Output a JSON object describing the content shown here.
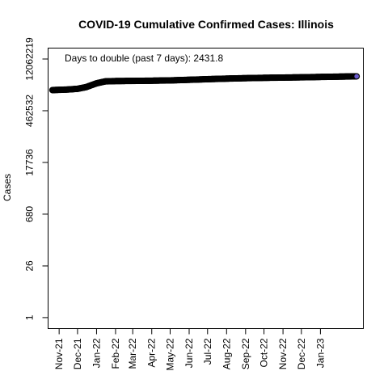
{
  "chart_data": {
    "type": "line",
    "title": "COVID-19 Cumulative Confirmed Cases: Illinois",
    "xlabel": "",
    "ylabel": "Cases",
    "y_scale": "log",
    "annotation": "Days to double (past 7 days): 2431.8",
    "grid": false,
    "legend": "none",
    "point_fill": "#6a5acd",
    "point_stroke": "#000000",
    "x_ticks": [
      "2021-11-01",
      "2021-12-01",
      "2022-01-01",
      "2022-02-01",
      "2022-03-01",
      "2022-04-01",
      "2022-05-01",
      "2022-06-01",
      "2022-07-01",
      "2022-08-01",
      "2022-09-01",
      "2022-10-01",
      "2022-11-01",
      "2022-12-01",
      "2023-01-01"
    ],
    "x_tick_labels": [
      "Nov-21",
      "Dec-21",
      "Jan-22",
      "Feb-22",
      "Mar-22",
      "Apr-22",
      "May-22",
      "Jun-22",
      "Jul-22",
      "Aug-22",
      "Sep-22",
      "Oct-22",
      "Nov-22",
      "Dec-22",
      "Jan-23"
    ],
    "y_ticks": [
      1,
      26,
      680,
      17736,
      462532,
      12062219
    ],
    "y_tick_labels": [
      "1",
      "26",
      "680",
      "17736",
      "462532",
      "12062219"
    ],
    "xlim": [
      "2021-10-14",
      "2023-03-12"
    ],
    "ylim": [
      0.5,
      24000000
    ],
    "series": [
      {
        "x": [
          "2021-10-21",
          "2021-11-01",
          "2021-11-15",
          "2021-12-01",
          "2021-12-15",
          "2022-01-01",
          "2022-01-15",
          "2022-02-01",
          "2022-03-01",
          "2022-04-01",
          "2022-05-01",
          "2022-06-01",
          "2022-07-01",
          "2022-08-01",
          "2022-09-01",
          "2022-10-01",
          "2022-11-01",
          "2022-12-01",
          "2023-01-01",
          "2023-02-01",
          "2023-03-01"
        ],
        "y": [
          1700000,
          1725000,
          1760000,
          1840000,
          2050000,
          2600000,
          2940000,
          3000000,
          3030000,
          3070000,
          3130000,
          3250000,
          3380000,
          3500000,
          3600000,
          3680000,
          3740000,
          3800000,
          3890000,
          3970000,
          4040000
        ]
      }
    ]
  }
}
